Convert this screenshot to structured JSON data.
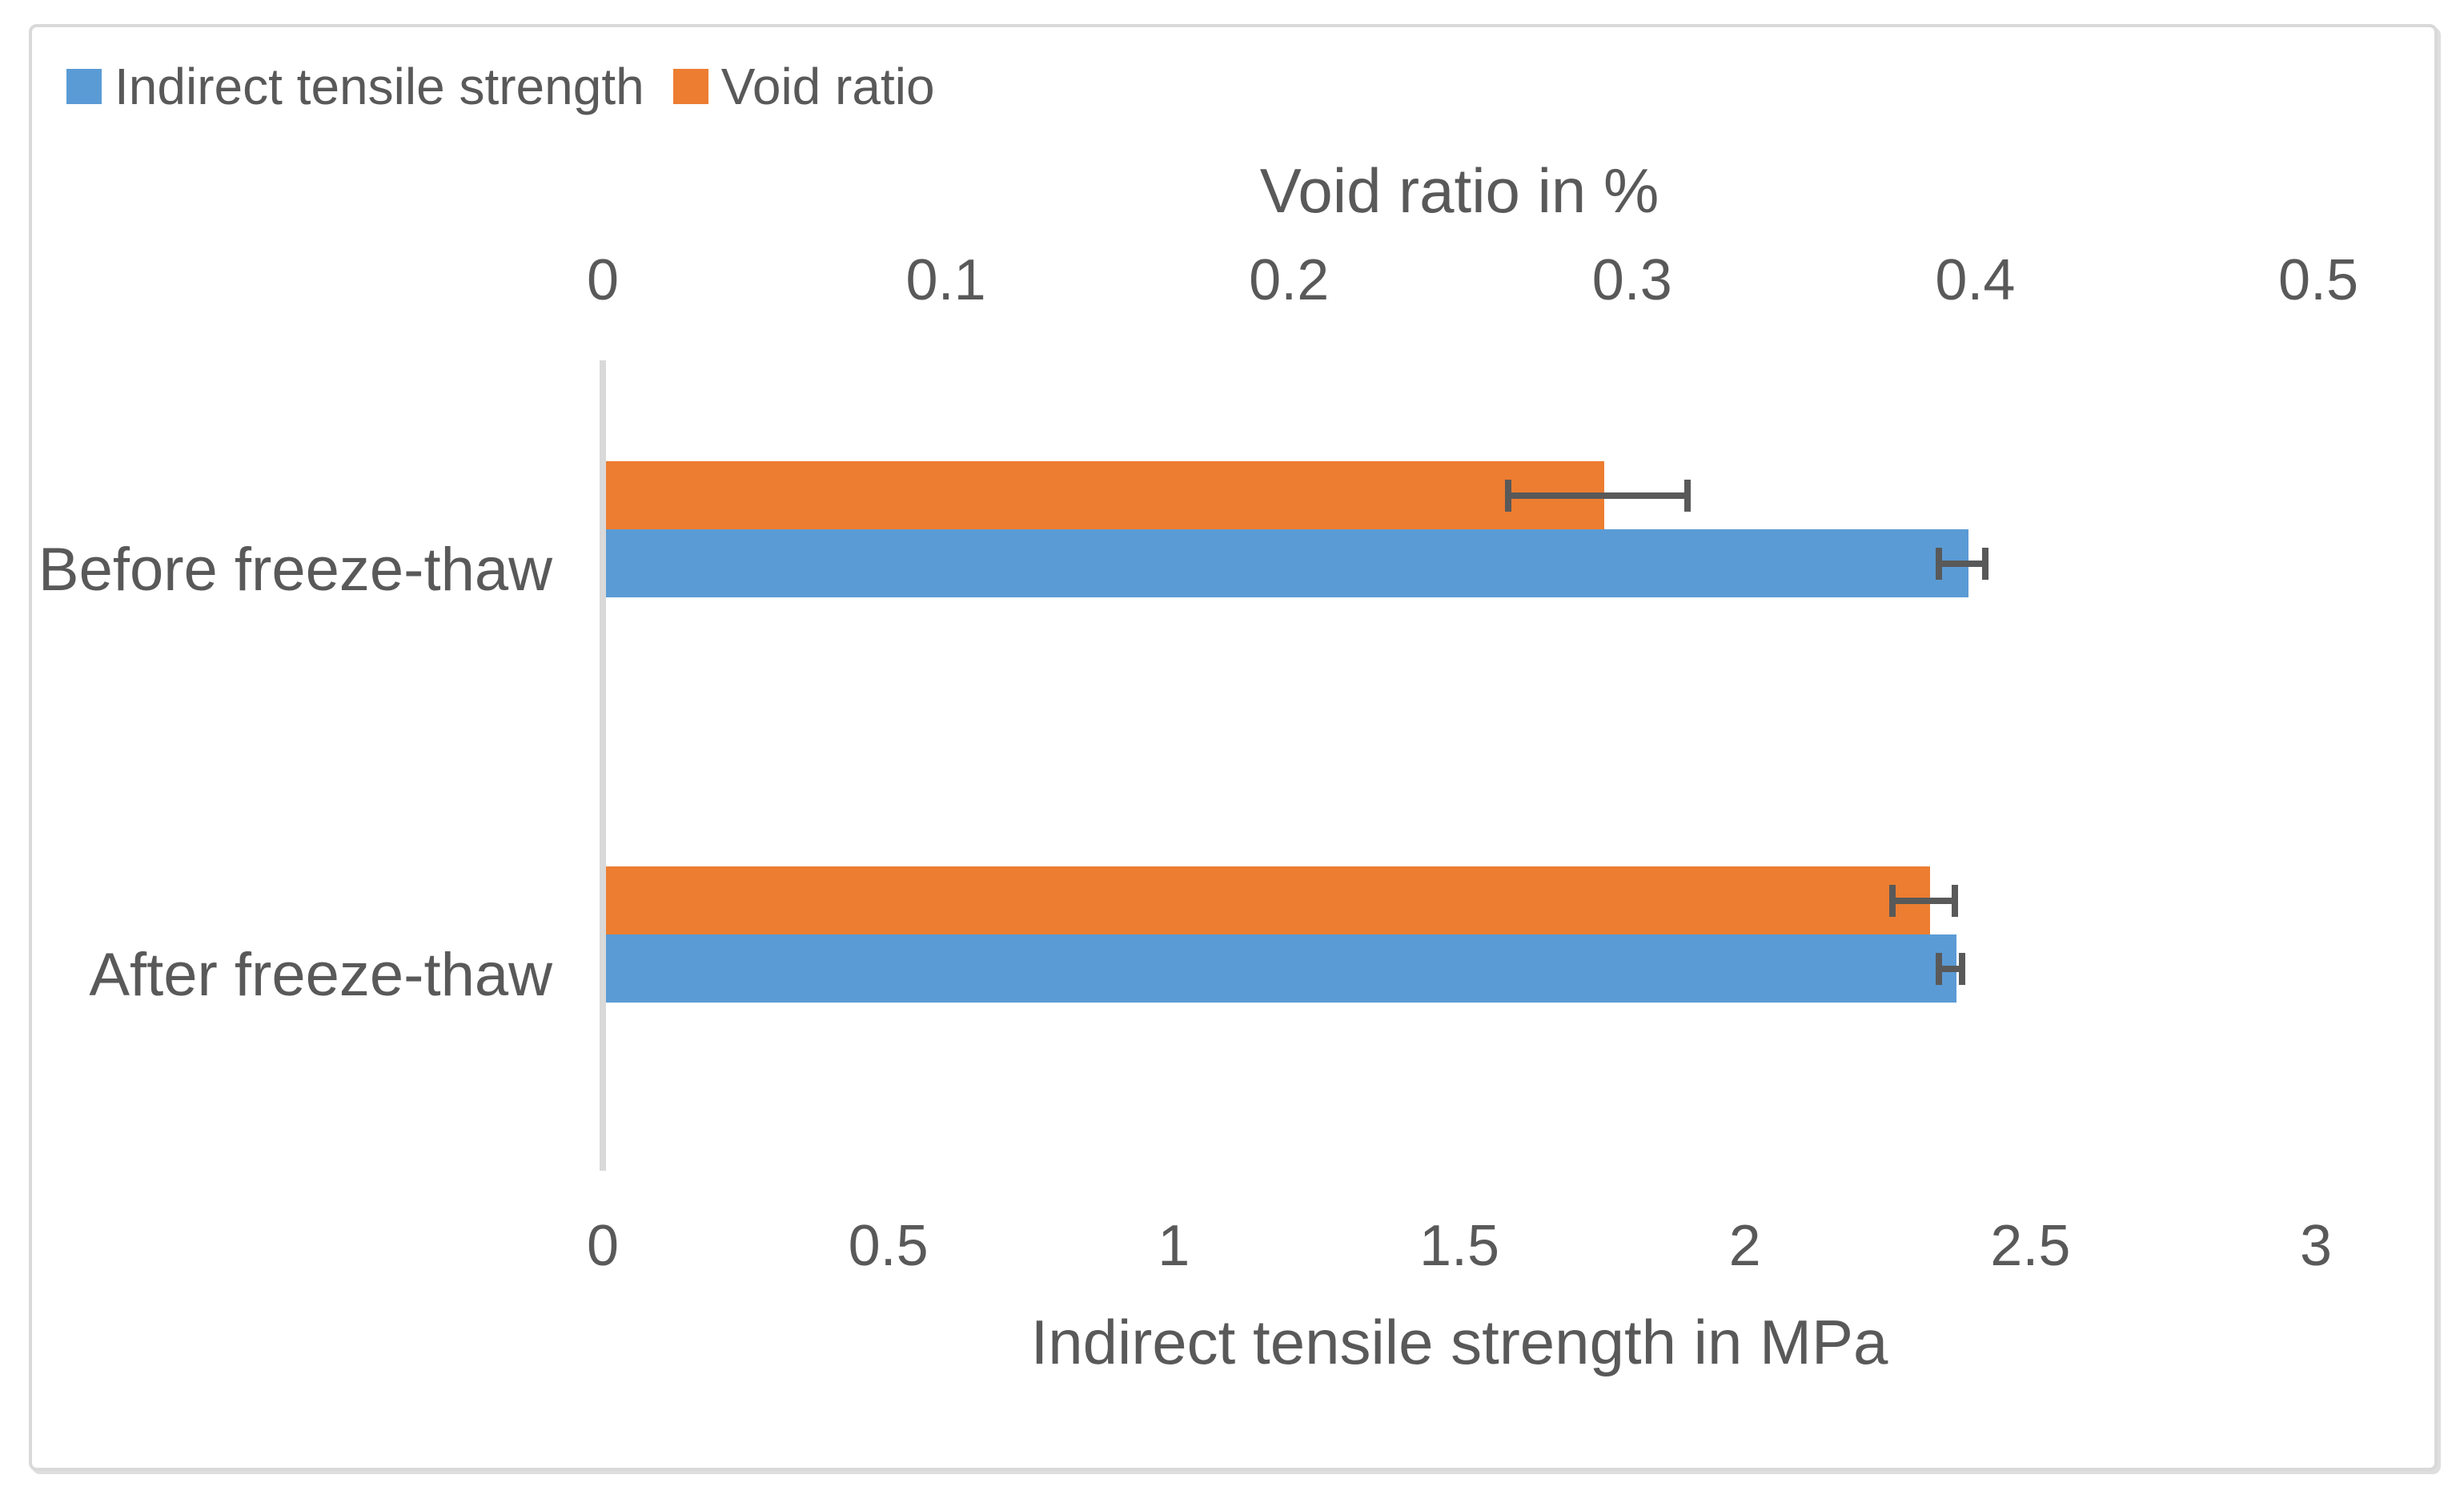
{
  "figure": {
    "background": "#FFFFFF",
    "border_color": "#D9D9D9"
  },
  "legend": {
    "items": [
      {
        "label": "Indirect tensile strength",
        "color": "#5B9BD5"
      },
      {
        "label": "Void ratio",
        "color": "#ED7D31"
      }
    ]
  },
  "chart_data": {
    "type": "bar",
    "orientation": "horizontal",
    "categories": [
      "Before freeze-thaw",
      "After freeze-thaw"
    ],
    "series": [
      {
        "name": "Indirect tensile strength",
        "color": "#5B9BD5",
        "axis": "bottom",
        "values": [
          2.38,
          2.36
        ],
        "error_bars": [
          0.046,
          0.026
        ]
      },
      {
        "name": "Void ratio",
        "color": "#ED7D31",
        "axis": "top",
        "values": [
          0.29,
          0.385
        ],
        "error_bars": [
          0.027,
          0.01
        ]
      }
    ],
    "top_axis": {
      "title": "Void ratio in %",
      "min": 0,
      "max": 0.5,
      "ticks": [
        "0",
        "0.1",
        "0.2",
        "0.3",
        "0.4",
        "0.5"
      ]
    },
    "bottom_axis": {
      "title": "Indirect tensile strength in MPa",
      "min": 0,
      "max": 3,
      "ticks": [
        "0",
        "0.5",
        "1",
        "1.5",
        "2",
        "2.5",
        "3"
      ]
    },
    "gridlines": false,
    "legend_position": "top-left",
    "error_bar_color": "#595959",
    "text_color": "#595959",
    "axis_line_color": "#D9D9D9"
  }
}
